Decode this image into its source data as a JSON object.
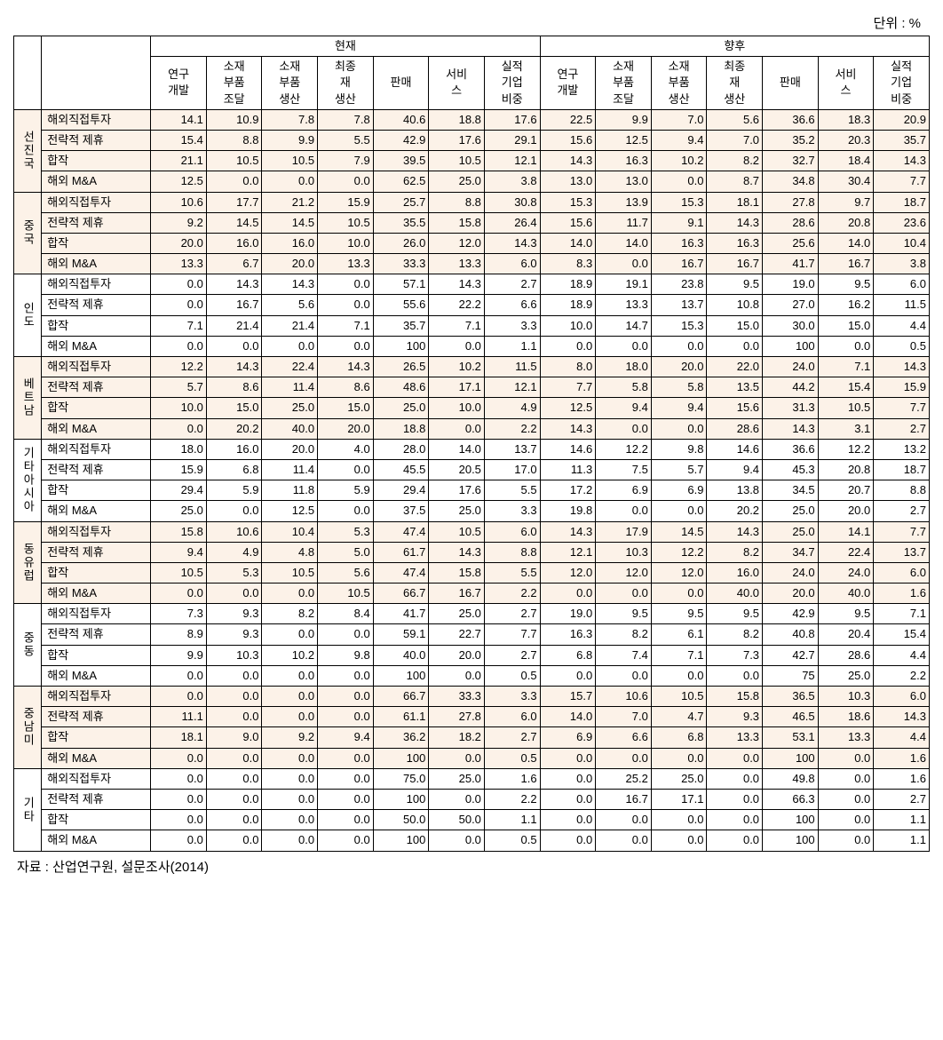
{
  "unit_label": "단위 : %",
  "header_groups": [
    "현재",
    "향후"
  ],
  "sub_headers": [
    "연구\n개발",
    "소재\n부품\n조달",
    "소재\n부품\n생산",
    "최종\n재\n생산",
    "판매",
    "서비\n스",
    "실적\n기업\n비중"
  ],
  "regions": [
    {
      "name": "선진국",
      "highlight": true,
      "rows": [
        {
          "type": "해외직접투자",
          "values": [
            "14.1",
            "10.9",
            "7.8",
            "7.8",
            "40.6",
            "18.8",
            "17.6",
            "22.5",
            "9.9",
            "7.0",
            "5.6",
            "36.6",
            "18.3",
            "20.9"
          ]
        },
        {
          "type": "전략적 제휴",
          "values": [
            "15.4",
            "8.8",
            "9.9",
            "5.5",
            "42.9",
            "17.6",
            "29.1",
            "15.6",
            "12.5",
            "9.4",
            "7.0",
            "35.2",
            "20.3",
            "35.7"
          ]
        },
        {
          "type": "합작",
          "values": [
            "21.1",
            "10.5",
            "10.5",
            "7.9",
            "39.5",
            "10.5",
            "12.1",
            "14.3",
            "16.3",
            "10.2",
            "8.2",
            "32.7",
            "18.4",
            "14.3"
          ]
        },
        {
          "type": "해외 M&A",
          "values": [
            "12.5",
            "0.0",
            "0.0",
            "0.0",
            "62.5",
            "25.0",
            "3.8",
            "13.0",
            "13.0",
            "0.0",
            "8.7",
            "34.8",
            "30.4",
            "7.7"
          ]
        }
      ]
    },
    {
      "name": "중국",
      "highlight": true,
      "rows": [
        {
          "type": "해외직접투자",
          "values": [
            "10.6",
            "17.7",
            "21.2",
            "15.9",
            "25.7",
            "8.8",
            "30.8",
            "15.3",
            "13.9",
            "15.3",
            "18.1",
            "27.8",
            "9.7",
            "18.7"
          ]
        },
        {
          "type": "전략적 제휴",
          "values": [
            "9.2",
            "14.5",
            "14.5",
            "10.5",
            "35.5",
            "15.8",
            "26.4",
            "15.6",
            "11.7",
            "9.1",
            "14.3",
            "28.6",
            "20.8",
            "23.6"
          ]
        },
        {
          "type": "합작",
          "values": [
            "20.0",
            "16.0",
            "16.0",
            "10.0",
            "26.0",
            "12.0",
            "14.3",
            "14.0",
            "14.0",
            "16.3",
            "16.3",
            "25.6",
            "14.0",
            "10.4"
          ]
        },
        {
          "type": "해외 M&A",
          "values": [
            "13.3",
            "6.7",
            "20.0",
            "13.3",
            "33.3",
            "13.3",
            "6.0",
            "8.3",
            "0.0",
            "16.7",
            "16.7",
            "41.7",
            "16.7",
            "3.8"
          ]
        }
      ]
    },
    {
      "name": "인도",
      "highlight": false,
      "rows": [
        {
          "type": "해외직접투자",
          "values": [
            "0.0",
            "14.3",
            "14.3",
            "0.0",
            "57.1",
            "14.3",
            "2.7",
            "18.9",
            "19.1",
            "23.8",
            "9.5",
            "19.0",
            "9.5",
            "6.0"
          ]
        },
        {
          "type": "전략적 제휴",
          "values": [
            "0.0",
            "16.7",
            "5.6",
            "0.0",
            "55.6",
            "22.2",
            "6.6",
            "18.9",
            "13.3",
            "13.7",
            "10.8",
            "27.0",
            "16.2",
            "11.5"
          ]
        },
        {
          "type": "합작",
          "values": [
            "7.1",
            "21.4",
            "21.4",
            "7.1",
            "35.7",
            "7.1",
            "3.3",
            "10.0",
            "14.7",
            "15.3",
            "15.0",
            "30.0",
            "15.0",
            "4.4"
          ]
        },
        {
          "type": "해외 M&A",
          "values": [
            "0.0",
            "0.0",
            "0.0",
            "0.0",
            "100",
            "0.0",
            "1.1",
            "0.0",
            "0.0",
            "0.0",
            "0.0",
            "100",
            "0.0",
            "0.5"
          ]
        }
      ]
    },
    {
      "name": "베트남",
      "highlight": true,
      "rows": [
        {
          "type": "해외직접투자",
          "values": [
            "12.2",
            "14.3",
            "22.4",
            "14.3",
            "26.5",
            "10.2",
            "11.5",
            "8.0",
            "18.0",
            "20.0",
            "22.0",
            "24.0",
            "7.1",
            "14.3"
          ]
        },
        {
          "type": "전략적 제휴",
          "values": [
            "5.7",
            "8.6",
            "11.4",
            "8.6",
            "48.6",
            "17.1",
            "12.1",
            "7.7",
            "5.8",
            "5.8",
            "13.5",
            "44.2",
            "15.4",
            "15.9"
          ]
        },
        {
          "type": "합작",
          "values": [
            "10.0",
            "15.0",
            "25.0",
            "15.0",
            "25.0",
            "10.0",
            "4.9",
            "12.5",
            "9.4",
            "9.4",
            "15.6",
            "31.3",
            "10.5",
            "7.7"
          ]
        },
        {
          "type": "해외 M&A",
          "values": [
            "0.0",
            "20.2",
            "40.0",
            "20.0",
            "18.8",
            "0.0",
            "2.2",
            "14.3",
            "0.0",
            "0.0",
            "28.6",
            "14.3",
            "3.1",
            "2.7"
          ]
        }
      ]
    },
    {
      "name": "기타아시아",
      "highlight": false,
      "rows": [
        {
          "type": "해외직접투자",
          "values": [
            "18.0",
            "16.0",
            "20.0",
            "4.0",
            "28.0",
            "14.0",
            "13.7",
            "14.6",
            "12.2",
            "9.8",
            "14.6",
            "36.6",
            "12.2",
            "13.2"
          ]
        },
        {
          "type": "전략적 제휴",
          "values": [
            "15.9",
            "6.8",
            "11.4",
            "0.0",
            "45.5",
            "20.5",
            "17.0",
            "11.3",
            "7.5",
            "5.7",
            "9.4",
            "45.3",
            "20.8",
            "18.7"
          ]
        },
        {
          "type": "합작",
          "values": [
            "29.4",
            "5.9",
            "11.8",
            "5.9",
            "29.4",
            "17.6",
            "5.5",
            "17.2",
            "6.9",
            "6.9",
            "13.8",
            "34.5",
            "20.7",
            "8.8"
          ]
        },
        {
          "type": "해외 M&A",
          "values": [
            "25.0",
            "0.0",
            "12.5",
            "0.0",
            "37.5",
            "25.0",
            "3.3",
            "19.8",
            "0.0",
            "0.0",
            "20.2",
            "25.0",
            "20.0",
            "2.7"
          ]
        }
      ]
    },
    {
      "name": "동유럽",
      "highlight": true,
      "rows": [
        {
          "type": "해외직접투자",
          "values": [
            "15.8",
            "10.6",
            "10.4",
            "5.3",
            "47.4",
            "10.5",
            "6.0",
            "14.3",
            "17.9",
            "14.5",
            "14.3",
            "25.0",
            "14.1",
            "7.7"
          ]
        },
        {
          "type": "전략적 제휴",
          "values": [
            "9.4",
            "4.9",
            "4.8",
            "5.0",
            "61.7",
            "14.3",
            "8.8",
            "12.1",
            "10.3",
            "12.2",
            "8.2",
            "34.7",
            "22.4",
            "13.7"
          ]
        },
        {
          "type": "합작",
          "values": [
            "10.5",
            "5.3",
            "10.5",
            "5.6",
            "47.4",
            "15.8",
            "5.5",
            "12.0",
            "12.0",
            "12.0",
            "16.0",
            "24.0",
            "24.0",
            "6.0"
          ]
        },
        {
          "type": "해외 M&A",
          "values": [
            "0.0",
            "0.0",
            "0.0",
            "10.5",
            "66.7",
            "16.7",
            "2.2",
            "0.0",
            "0.0",
            "0.0",
            "40.0",
            "20.0",
            "40.0",
            "1.6"
          ]
        }
      ]
    },
    {
      "name": "중동",
      "highlight": false,
      "rows": [
        {
          "type": "해외직접투자",
          "values": [
            "7.3",
            "9.3",
            "8.2",
            "8.4",
            "41.7",
            "25.0",
            "2.7",
            "19.0",
            "9.5",
            "9.5",
            "9.5",
            "42.9",
            "9.5",
            "7.1"
          ]
        },
        {
          "type": "전략적 제휴",
          "values": [
            "8.9",
            "9.3",
            "0.0",
            "0.0",
            "59.1",
            "22.7",
            "7.7",
            "16.3",
            "8.2",
            "6.1",
            "8.2",
            "40.8",
            "20.4",
            "15.4"
          ]
        },
        {
          "type": "합작",
          "values": [
            "9.9",
            "10.3",
            "10.2",
            "9.8",
            "40.0",
            "20.0",
            "2.7",
            "6.8",
            "7.4",
            "7.1",
            "7.3",
            "42.7",
            "28.6",
            "4.4"
          ]
        },
        {
          "type": "해외 M&A",
          "values": [
            "0.0",
            "0.0",
            "0.0",
            "0.0",
            "100",
            "0.0",
            "0.5",
            "0.0",
            "0.0",
            "0.0",
            "0.0",
            "75",
            "25.0",
            "2.2"
          ]
        }
      ]
    },
    {
      "name": "중남미",
      "highlight": true,
      "rows": [
        {
          "type": "해외직접투자",
          "values": [
            "0.0",
            "0.0",
            "0.0",
            "0.0",
            "66.7",
            "33.3",
            "3.3",
            "15.7",
            "10.6",
            "10.5",
            "15.8",
            "36.5",
            "10.3",
            "6.0"
          ]
        },
        {
          "type": "전략적 제휴",
          "values": [
            "11.1",
            "0.0",
            "0.0",
            "0.0",
            "61.1",
            "27.8",
            "6.0",
            "14.0",
            "7.0",
            "4.7",
            "9.3",
            "46.5",
            "18.6",
            "14.3"
          ]
        },
        {
          "type": "합작",
          "values": [
            "18.1",
            "9.0",
            "9.2",
            "9.4",
            "36.2",
            "18.2",
            "2.7",
            "6.9",
            "6.6",
            "6.8",
            "13.3",
            "53.1",
            "13.3",
            "4.4"
          ]
        },
        {
          "type": "해외 M&A",
          "values": [
            "0.0",
            "0.0",
            "0.0",
            "0.0",
            "100",
            "0.0",
            "0.5",
            "0.0",
            "0.0",
            "0.0",
            "0.0",
            "100",
            "0.0",
            "1.6"
          ]
        }
      ]
    },
    {
      "name": "기타",
      "highlight": false,
      "rows": [
        {
          "type": "해외직접투자",
          "values": [
            "0.0",
            "0.0",
            "0.0",
            "0.0",
            "75.0",
            "25.0",
            "1.6",
            "0.0",
            "25.2",
            "25.0",
            "0.0",
            "49.8",
            "0.0",
            "1.6"
          ]
        },
        {
          "type": "전략적 제휴",
          "values": [
            "0.0",
            "0.0",
            "0.0",
            "0.0",
            "100",
            "0.0",
            "2.2",
            "0.0",
            "16.7",
            "17.1",
            "0.0",
            "66.3",
            "0.0",
            "2.7"
          ]
        },
        {
          "type": "합작",
          "values": [
            "0.0",
            "0.0",
            "0.0",
            "0.0",
            "50.0",
            "50.0",
            "1.1",
            "0.0",
            "0.0",
            "0.0",
            "0.0",
            "100",
            "0.0",
            "1.1"
          ]
        },
        {
          "type": "해외 M&A",
          "values": [
            "0.0",
            "0.0",
            "0.0",
            "0.0",
            "100",
            "0.0",
            "0.5",
            "0.0",
            "0.0",
            "0.0",
            "0.0",
            "100",
            "0.0",
            "1.1"
          ]
        }
      ]
    }
  ],
  "source": "자료 : 산업연구원, 설문조사(2014)"
}
